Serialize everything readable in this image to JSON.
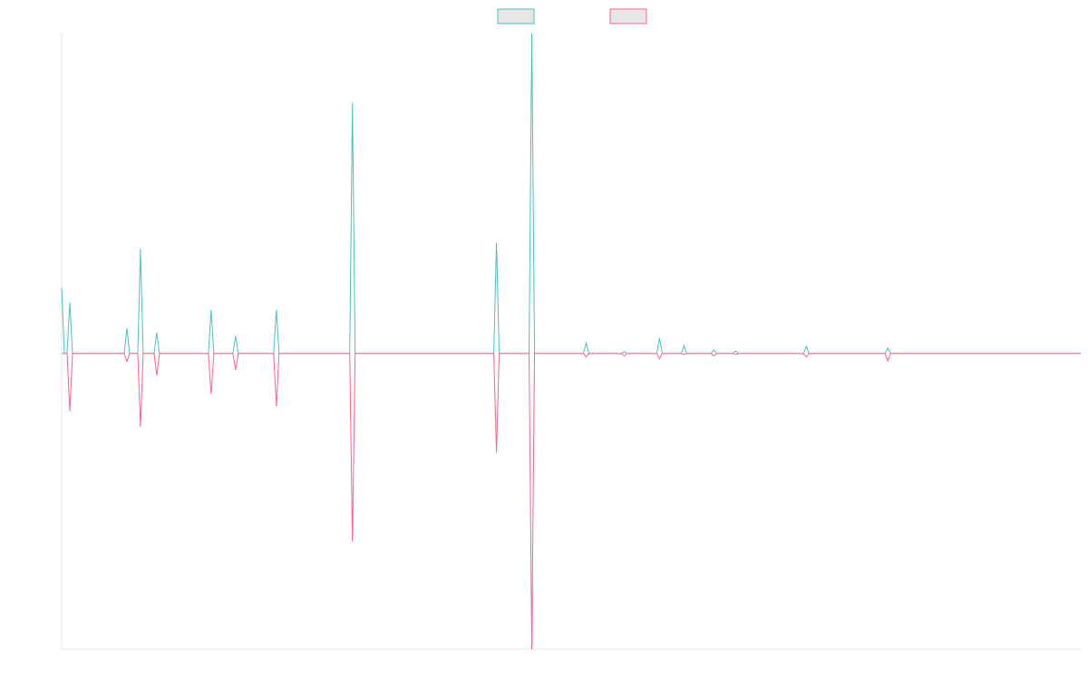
{
  "chart_data": {
    "type": "line",
    "x": [
      0,
      1,
      2,
      3,
      4,
      23,
      24,
      25,
      28,
      29,
      30,
      34,
      35,
      36,
      54,
      55,
      56,
      63,
      64,
      65,
      78,
      79,
      80,
      106,
      107,
      108,
      159,
      160,
      161,
      172,
      173,
      174,
      192,
      193,
      194,
      206,
      207,
      208,
      219,
      220,
      221,
      228,
      229,
      230,
      239,
      240,
      241,
      247,
      248,
      249,
      273,
      274,
      275,
      303,
      304,
      305,
      375
    ],
    "series": [
      {
        "color": "#4bc0c0",
        "values": [
          20.4,
          0,
          0,
          15.9,
          0,
          0,
          7.9,
          0,
          0,
          32.6,
          0,
          0,
          6.5,
          0,
          0,
          13.6,
          0,
          0,
          5.4,
          0,
          0,
          13.6,
          0,
          0,
          78.2,
          0,
          0,
          34.6,
          0,
          0,
          100,
          0,
          0,
          3.4,
          0,
          0,
          0.6,
          0,
          0,
          4.8,
          0,
          0,
          2.5,
          0,
          0,
          1.1,
          0,
          0,
          0.8,
          0,
          0,
          2.3,
          0,
          0,
          1.7,
          0,
          0
        ]
      },
      {
        "color": "#ff6384",
        "values": [
          0,
          0,
          0,
          -18.1,
          0,
          0,
          -2.5,
          0,
          0,
          -22.9,
          0,
          0,
          -6.8,
          0,
          0,
          -12.7,
          0,
          0,
          -5.1,
          0,
          0,
          -16.4,
          0,
          0,
          -58.9,
          0,
          0,
          -30.9,
          0,
          0,
          -92.4,
          0,
          0,
          -1.1,
          0,
          0,
          -0.8,
          0,
          0,
          -1.7,
          0,
          0,
          -0.3,
          0,
          0,
          -0.8,
          0,
          0,
          -0.3,
          0,
          0,
          -1.1,
          0,
          0,
          -2.3,
          0,
          0
        ]
      }
    ],
    "xlim": [
      0,
      375
    ],
    "ylim": [
      -92.4,
      100
    ],
    "legend": "top"
  }
}
